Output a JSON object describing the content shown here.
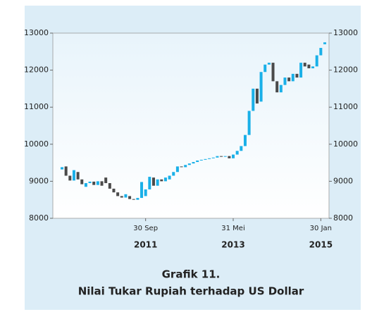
{
  "chart_data": {
    "type": "candlestick",
    "caption_number": "Grafik 11.",
    "title": "Nilai Tukar Rupiah terhadap US Dollar",
    "categories": [
      null,
      null,
      null,
      null,
      null,
      null,
      null,
      null,
      null,
      null,
      null,
      null,
      null,
      null,
      null,
      null,
      null,
      null,
      null,
      null,
      null,
      "30 Sep",
      null,
      null,
      null,
      null,
      null,
      null,
      null,
      null,
      null,
      null,
      null,
      null,
      null,
      null,
      null,
      null,
      null,
      null,
      null,
      null,
      null,
      "31 Mei",
      null,
      null,
      null,
      null,
      null,
      null,
      null,
      null,
      null,
      null,
      null,
      null,
      null,
      null,
      null,
      null,
      null,
      null,
      null,
      null,
      null,
      "30 Jan",
      null
    ],
    "years": [
      null,
      null,
      null,
      null,
      null,
      null,
      null,
      null,
      null,
      null,
      null,
      null,
      null,
      null,
      null,
      null,
      null,
      null,
      null,
      null,
      null,
      "2011",
      null,
      null,
      null,
      null,
      null,
      null,
      null,
      null,
      null,
      null,
      null,
      null,
      null,
      null,
      null,
      null,
      null,
      null,
      null,
      null,
      null,
      "2013",
      null,
      null,
      null,
      null,
      null,
      null,
      null,
      null,
      null,
      null,
      null,
      null,
      null,
      null,
      null,
      null,
      null,
      null,
      null,
      null,
      null,
      "2015",
      null
    ],
    "open": [
      9320,
      9400,
      9150,
      9020,
      9250,
      9050,
      8850,
      8950,
      8990,
      8900,
      9000,
      9100,
      8950,
      8800,
      8700,
      8600,
      8560,
      8600,
      8520,
      8500,
      8550,
      8600,
      8780,
      9100,
      8880,
      9050,
      9000,
      9050,
      9150,
      9250,
      9400,
      9380,
      9440,
      9480,
      9520,
      9560,
      9580,
      9600,
      9620,
      9640,
      9680,
      9660,
      9680,
      9620,
      9720,
      9820,
      9950,
      10250,
      10900,
      11500,
      11150,
      11950,
      12150,
      12200,
      11700,
      11400,
      11600,
      11800,
      11700,
      11900,
      11800,
      12200,
      12150,
      12050,
      12100,
      12400,
      12700
    ],
    "close": [
      9380,
      9150,
      9020,
      9300,
      9050,
      8920,
      8950,
      8990,
      8900,
      9000,
      8880,
      8950,
      8800,
      8700,
      8600,
      8560,
      8650,
      8520,
      8500,
      8550,
      8980,
      8780,
      9120,
      8880,
      9050,
      9000,
      9100,
      9150,
      9250,
      9400,
      9380,
      9440,
      9480,
      9520,
      9560,
      9580,
      9600,
      9620,
      9640,
      9680,
      9660,
      9680,
      9620,
      9720,
      9820,
      9950,
      10250,
      10900,
      11500,
      11100,
      11950,
      12150,
      12200,
      11700,
      11400,
      11600,
      11800,
      11700,
      11900,
      11800,
      12200,
      12100,
      12050,
      12100,
      12400,
      12600,
      12750
    ],
    "up_color": "#1ab0e8",
    "down_color": "#4a4a4a",
    "ylim": [
      8000,
      13000
    ],
    "yticks": [
      8000,
      9000,
      10000,
      11000,
      12000,
      13000
    ]
  }
}
